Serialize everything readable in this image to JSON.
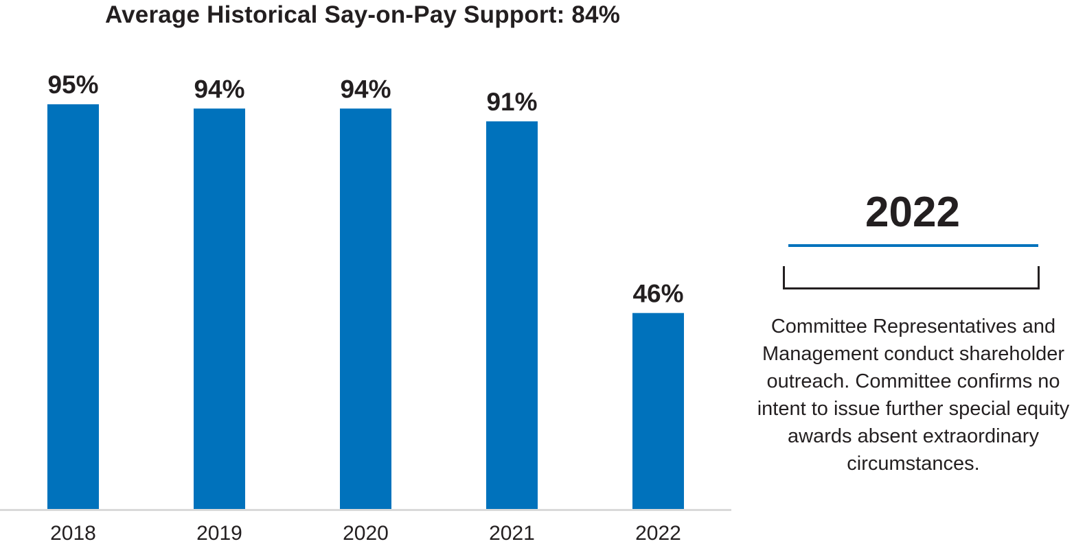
{
  "chart_data": {
    "type": "bar",
    "title": "Average Historical Say-on-Pay Support: 84%",
    "categories": [
      "2018",
      "2019",
      "2020",
      "2021",
      "2022"
    ],
    "values": [
      95,
      94,
      94,
      91,
      46
    ],
    "value_labels": [
      "95%",
      "94%",
      "94%",
      "91%",
      "46%"
    ],
    "xlabel": "",
    "ylabel": "",
    "ylim": [
      0,
      100
    ],
    "grid": false,
    "bar_color": "#0072bc",
    "axis_color": "#d9d9d9"
  },
  "side_panel": {
    "year": "2022",
    "rule_color": "#0072bc",
    "text": "Committee Representatives and Management conduct shareholder outreach. Committee confirms no intent to issue further special equity awards absent extraordinary circumstances."
  }
}
